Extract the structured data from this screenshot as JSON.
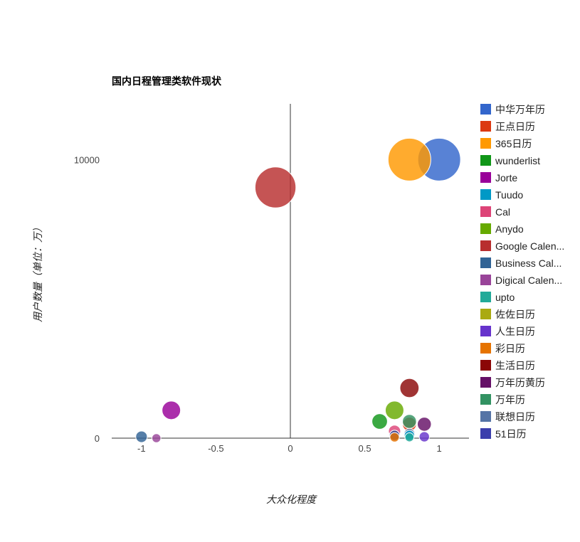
{
  "chart_data": {
    "type": "bubble",
    "title": "国内日程管理类软件现状",
    "xlabel": "大众化程度",
    "ylabel": "用户数量（单位：万）",
    "xlim": [
      -1.2,
      1.2
    ],
    "ylim": [
      0,
      12000
    ],
    "xticks": [
      "-1",
      "-0.5",
      "0",
      "0.5",
      "1"
    ],
    "xtick_values": [
      -1,
      -0.5,
      0,
      0.5,
      1
    ],
    "yticks": [
      "0",
      "10000"
    ],
    "ytick_values": [
      0,
      10000
    ],
    "legend_position": "right",
    "series": [
      {
        "name": "中华万年历",
        "color": "#3366cc",
        "x": 1.0,
        "y": 10000,
        "size": 10000
      },
      {
        "name": "正点日历",
        "color": "#dc3912",
        "x": 0.8,
        "y": 500,
        "size": 500
      },
      {
        "name": "365日历",
        "color": "#ff9900",
        "x": 0.8,
        "y": 10000,
        "size": 10000
      },
      {
        "name": "wunderlist",
        "color": "#109618",
        "x": 0.6,
        "y": 600,
        "size": 700
      },
      {
        "name": "Jorte",
        "color": "#990099",
        "x": -0.8,
        "y": 1000,
        "size": 1200
      },
      {
        "name": "Tuudo",
        "color": "#0099c6",
        "x": 0.8,
        "y": 100,
        "size": 150
      },
      {
        "name": "Cal",
        "color": "#dd4477",
        "x": 0.7,
        "y": 250,
        "size": 300
      },
      {
        "name": "Anydo",
        "color": "#66aa00",
        "x": 0.7,
        "y": 1000,
        "size": 1200
      },
      {
        "name": "Google Calen...",
        "color": "#b82e2e",
        "x": -0.1,
        "y": 9000,
        "size": 9000
      },
      {
        "name": "Business Cal...",
        "color": "#316395",
        "x": -1.0,
        "y": 50,
        "size": 250
      },
      {
        "name": "Digical Calen...",
        "color": "#994499",
        "x": -0.9,
        "y": 0,
        "size": 80
      },
      {
        "name": "upto",
        "color": "#22aa99",
        "x": 0.8,
        "y": 30,
        "size": 80
      },
      {
        "name": "佐佐日历",
        "color": "#aaaa11",
        "x": 0.7,
        "y": 100,
        "size": 150
      },
      {
        "name": "人生日历",
        "color": "#6633cc",
        "x": 0.9,
        "y": 50,
        "size": 150
      },
      {
        "name": "彩日历",
        "color": "#e67300",
        "x": 0.7,
        "y": 30,
        "size": 100
      },
      {
        "name": "生活日历",
        "color": "#8b0707",
        "x": 0.8,
        "y": 1800,
        "size": 1300
      },
      {
        "name": "万年历黄历",
        "color": "#651067",
        "x": 0.9,
        "y": 500,
        "size": 500
      },
      {
        "name": "万年历",
        "color": "#329262",
        "x": 0.8,
        "y": 600,
        "size": 500
      },
      {
        "name": "联想日历",
        "color": "#5574a6",
        "x": 0.8,
        "y": 150,
        "size": 200
      },
      {
        "name": "51日历",
        "color": "#3b3eac",
        "x": 0.7,
        "y": 100,
        "size": 150
      }
    ]
  }
}
